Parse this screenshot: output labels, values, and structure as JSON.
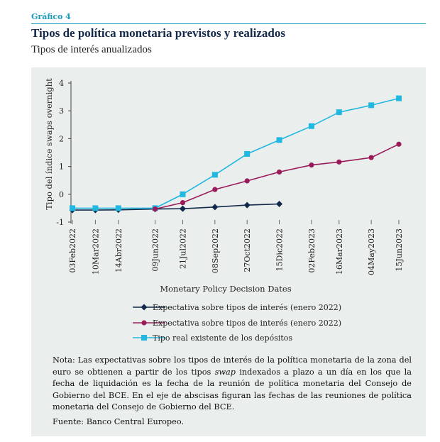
{
  "header": {
    "figure_label": "Gráfico 4",
    "title": "Tipos de política monetaria previstos y realizados",
    "subtitle": "Tipos de interés anualizados"
  },
  "chart_data": {
    "type": "line",
    "xlabel": "Monetary Policy Decision Dates",
    "ylabel": "Tipo del índice swaps overnight",
    "ylim": [
      -1,
      4
    ],
    "yticks": [
      -1,
      0,
      1,
      2,
      3,
      4
    ],
    "categories": [
      "03Feb2022",
      "10Mar2022",
      "14Abr2022",
      "09Jun2022",
      "21Jul2022",
      "08Sep2022",
      "27Oct2022",
      "15Dic2022",
      "02Feb2023",
      "16Mar2023",
      "04May2023",
      "15Jun2023"
    ],
    "x_dates": [
      "2022-02-03",
      "2022-03-10",
      "2022-04-14",
      "2022-06-09",
      "2022-07-21",
      "2022-09-08",
      "2022-10-27",
      "2022-12-15",
      "2023-02-02",
      "2023-03-16",
      "2023-05-04",
      "2023-06-15"
    ],
    "series": [
      {
        "name": "Expectativa sobre tipos de interés (enero 2022)",
        "color": "#13294b",
        "marker": "diamond",
        "values": [
          -0.57,
          -0.57,
          -0.56,
          -0.53,
          -0.52,
          -0.46,
          -0.39,
          -0.35,
          null,
          null,
          null,
          null
        ]
      },
      {
        "name": "Expectativa sobre tipos de interés (enero 2022)",
        "color": "#9b1b5a",
        "marker": "circle",
        "values": [
          null,
          null,
          null,
          -0.53,
          -0.3,
          0.17,
          0.48,
          0.8,
          1.05,
          1.16,
          1.32,
          1.8
        ]
      },
      {
        "name": "Tipo real existente de los depósitos",
        "color": "#20b8e0",
        "marker": "square",
        "values": [
          -0.5,
          -0.5,
          -0.5,
          -0.5,
          0.0,
          0.7,
          1.45,
          1.95,
          2.45,
          2.95,
          3.2,
          3.45
        ]
      }
    ],
    "legend_position": "bottom"
  },
  "note": {
    "before_italic": "Nota: Las expectativas sobre los tipos de interés de la política monetaria de la zona del euro se obtienen a partir de los tipos ",
    "italic": "swap",
    "after_italic": " indexados a plazo a un día en los que la fecha de liquidación es la fecha de la reunión de política monetaria del Consejo de Gobierno del BCE. En el eje de abscisas figuran las fechas de las reuniones de política monetaria del Consejo de Gobierno del BCE."
  },
  "source": "Fuente: Banco Central Europeo."
}
